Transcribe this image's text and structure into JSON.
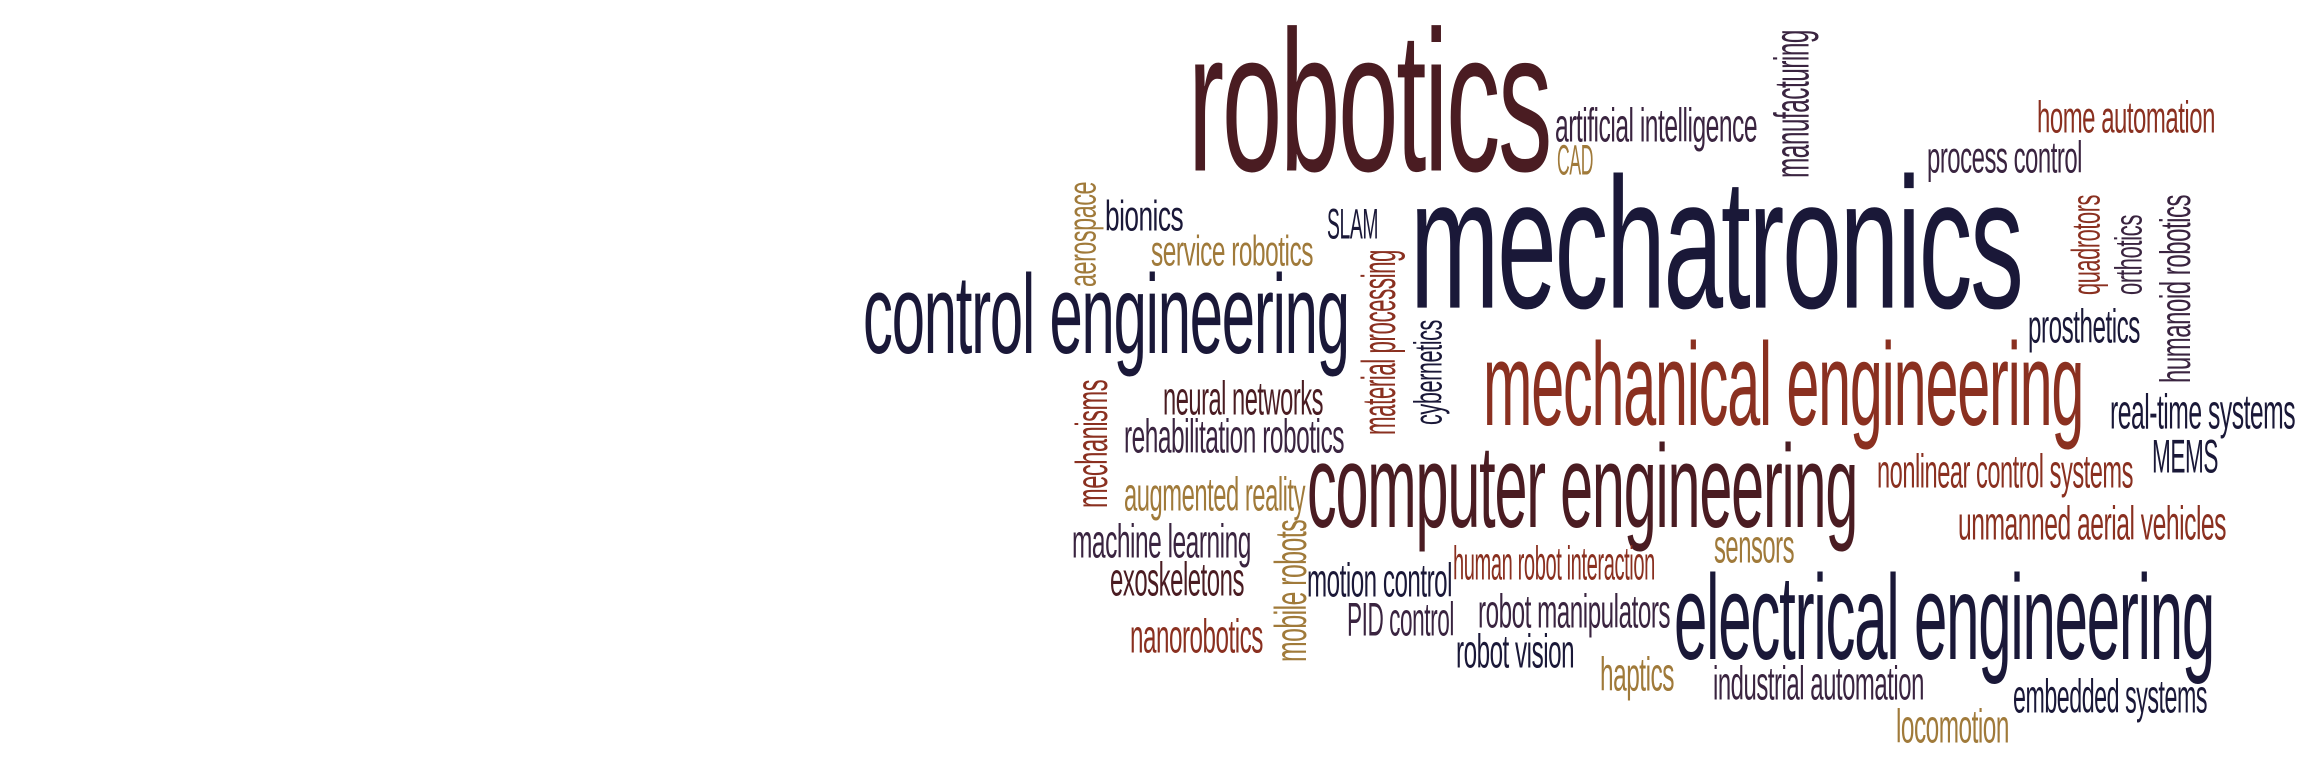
{
  "colors": {
    "background": "#ffffff",
    "dark_navy": "#1a1838",
    "maroon": "#4a1c22",
    "rust": "#8a3020",
    "gold": "#a07a3a",
    "plum": "#3a2440"
  },
  "words": [
    {
      "text": "robotics",
      "color": "#4a1c22"
    },
    {
      "text": "artificial intelligence",
      "color": "#3a2440"
    },
    {
      "text": "manufacturing",
      "color": "#3a2440"
    },
    {
      "text": "CAD",
      "color": "#a07a3a"
    },
    {
      "text": "home automation",
      "color": "#8a3020"
    },
    {
      "text": "process control",
      "color": "#3a2440"
    },
    {
      "text": "aerospace",
      "color": "#a07a3a"
    },
    {
      "text": "bionics",
      "color": "#1a1838"
    },
    {
      "text": "service robotics",
      "color": "#a07a3a"
    },
    {
      "text": "SLAM",
      "color": "#1a1838"
    },
    {
      "text": "mechatronics",
      "color": "#1a1838"
    },
    {
      "text": "quadrotors",
      "color": "#8a3020"
    },
    {
      "text": "orthotics",
      "color": "#3a2440"
    },
    {
      "text": "humanoid robotics",
      "color": "#3a2440"
    },
    {
      "text": "control engineering",
      "color": "#1a1838"
    },
    {
      "text": "material processing",
      "color": "#8a3020"
    },
    {
      "text": "cybernetics",
      "color": "#1a1838"
    },
    {
      "text": "prosthetics",
      "color": "#1a1838"
    },
    {
      "text": "mechanical engineering",
      "color": "#8a3020"
    },
    {
      "text": "real-time systems",
      "color": "#1a1838"
    },
    {
      "text": "neural networks",
      "color": "#4a1c22"
    },
    {
      "text": "mechanisms",
      "color": "#8a3020"
    },
    {
      "text": "rehabilitation robotics",
      "color": "#3a2440"
    },
    {
      "text": "MEMS",
      "color": "#1a1838"
    },
    {
      "text": "nonlinear control systems",
      "color": "#8a3020"
    },
    {
      "text": "augmented reality",
      "color": "#a07a3a"
    },
    {
      "text": "computer engineering",
      "color": "#4a1c22"
    },
    {
      "text": "unmanned aerial vehicles",
      "color": "#8a3020"
    },
    {
      "text": "machine learning",
      "color": "#3a2440"
    },
    {
      "text": "sensors",
      "color": "#a07a3a"
    },
    {
      "text": "mobile robots",
      "color": "#a07a3a"
    },
    {
      "text": "exoskeletons",
      "color": "#4a1c22"
    },
    {
      "text": "motion control",
      "color": "#1a1838"
    },
    {
      "text": "human robot interaction",
      "color": "#8a3020"
    },
    {
      "text": "electrical engineering",
      "color": "#1a1838"
    },
    {
      "text": "nanorobotics",
      "color": "#8a3020"
    },
    {
      "text": "PID control",
      "color": "#3a2440"
    },
    {
      "text": "robot manipulators",
      "color": "#3a2440"
    },
    {
      "text": "robot vision",
      "color": "#1a1838"
    },
    {
      "text": "haptics",
      "color": "#a07a3a"
    },
    {
      "text": "industrial automation",
      "color": "#3a2440"
    },
    {
      "text": "embedded systems",
      "color": "#1a1838"
    },
    {
      "text": "locomotion",
      "color": "#a07a3a"
    }
  ]
}
